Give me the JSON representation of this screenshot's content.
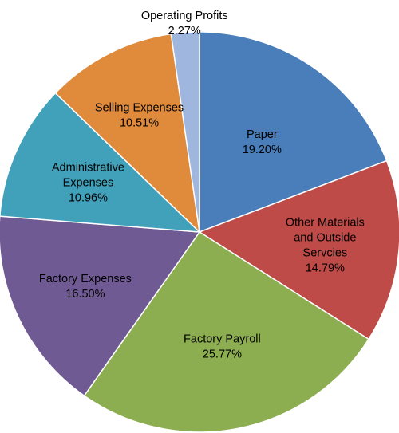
{
  "chart_data": {
    "type": "pie",
    "title": "",
    "start_angle_deg": 0,
    "direction": "clockwise",
    "legend": "none",
    "slices": [
      {
        "label_lines": [
          "Paper"
        ],
        "value_label": "19.20%",
        "value": 19.2,
        "color": "#4A7EBB"
      },
      {
        "label_lines": [
          "Other Materials",
          "and Outside",
          "Servcies"
        ],
        "value_label": "14.79%",
        "value": 14.79,
        "color": "#BE4B48"
      },
      {
        "label_lines": [
          "Factory Payroll"
        ],
        "value_label": "25.77%",
        "value": 25.77,
        "color": "#8CAE51"
      },
      {
        "label_lines": [
          "Factory Expenses"
        ],
        "value_label": "16.50%",
        "value": 16.5,
        "color": "#6F5A93"
      },
      {
        "label_lines": [
          "Administrative",
          "Expenses"
        ],
        "value_label": "10.96%",
        "value": 10.96,
        "color": "#41A0BA"
      },
      {
        "label_lines": [
          "Selling Expenses"
        ],
        "value_label": "10.51%",
        "value": 10.51,
        "color": "#E08A3C"
      },
      {
        "label_lines": [
          "Operating Profits"
        ],
        "value_label": "2.27%",
        "value": 2.27,
        "color": "#9FB7DE"
      }
    ]
  }
}
